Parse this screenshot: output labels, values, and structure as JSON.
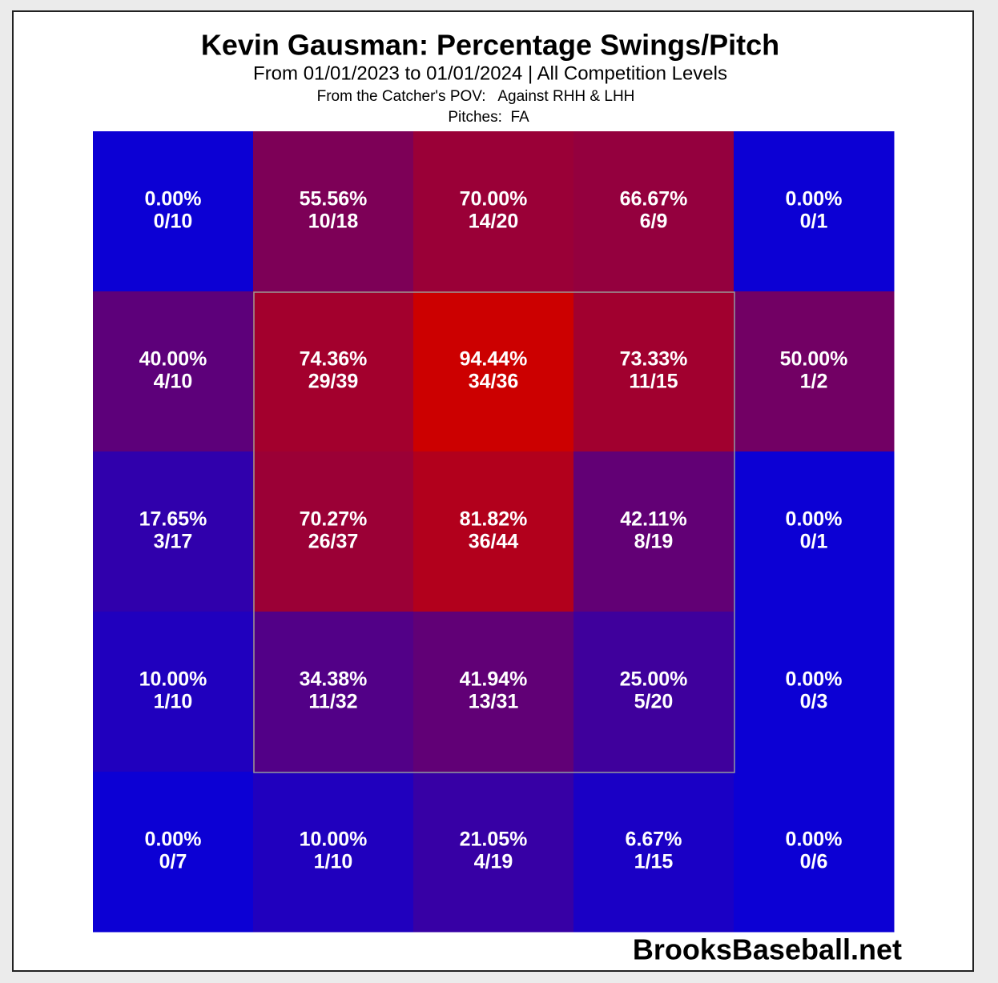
{
  "chart_data": {
    "type": "heatmap",
    "title": "Kevin Gausman: Percentage Swings/Pitch",
    "subtitle": "From 01/01/2023 to 01/01/2024 | All Competition Levels",
    "note": "From the Catcher's POV:   Against RHH & LHH",
    "pitches": "Pitches:  FA",
    "source": "BrooksBaseball.net",
    "colors": [
      "#0c00d4",
      "#cc0000"
    ],
    "values": [
      [
        0,
        55.56,
        70,
        66.67,
        0
      ],
      [
        40,
        74.36,
        94.44,
        73.33,
        50
      ],
      [
        17.65,
        70.27,
        81.82,
        42.11,
        0
      ],
      [
        10,
        34.38,
        41.94,
        25,
        0
      ],
      [
        0,
        10,
        21.05,
        6.67,
        0
      ]
    ],
    "value_labels": [
      [
        "0.00%",
        "55.56%",
        "70.00%",
        "66.67%",
        "0.00%"
      ],
      [
        "40.00%",
        "74.36%",
        "94.44%",
        "73.33%",
        "50.00%"
      ],
      [
        "17.65%",
        "70.27%",
        "81.82%",
        "42.11%",
        "0.00%"
      ],
      [
        "10.00%",
        "34.38%",
        "41.94%",
        "25.00%",
        "0.00%"
      ],
      [
        "0.00%",
        "10.00%",
        "21.05%",
        "6.67%",
        "0.00%"
      ]
    ],
    "counts": [
      [
        "0/10",
        "10/18",
        "14/20",
        "6/9",
        "0/1"
      ],
      [
        "4/10",
        "29/39",
        "34/36",
        "11/15",
        "1/2"
      ],
      [
        "3/17",
        "26/37",
        "36/44",
        "8/19",
        "0/1"
      ],
      [
        "1/10",
        "11/32",
        "13/31",
        "5/20",
        "0/3"
      ],
      [
        "0/7",
        "1/10",
        "4/19",
        "1/15",
        "0/6"
      ]
    ]
  }
}
